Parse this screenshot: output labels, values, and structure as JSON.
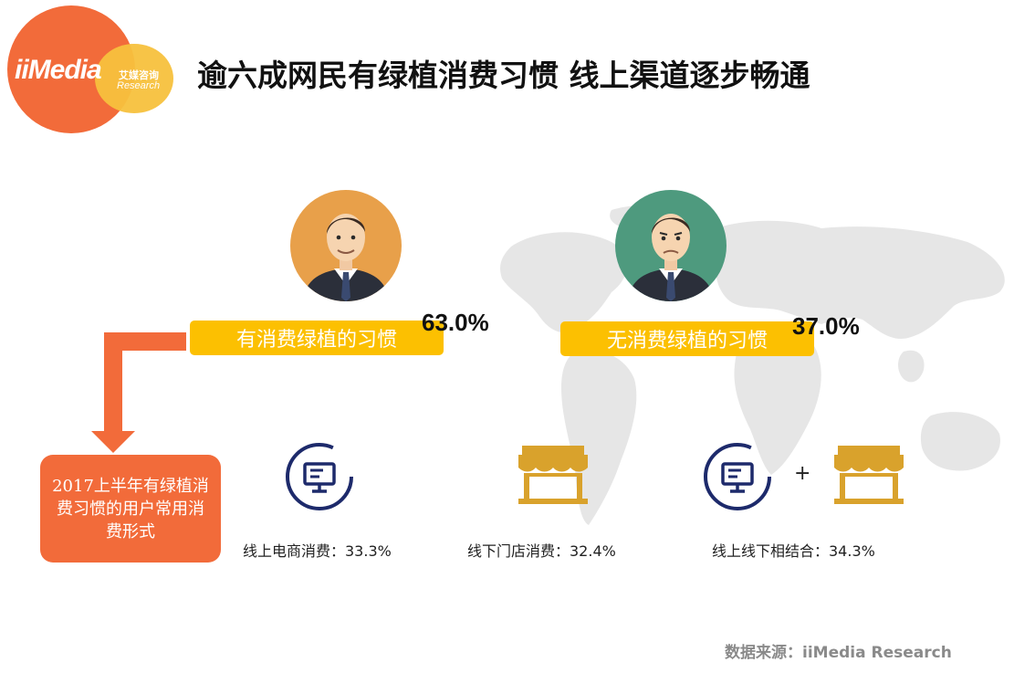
{
  "logo": {
    "brand": "iiMedia",
    "brand_cn": "艾媒咨询",
    "brand_en": "Research"
  },
  "title": "逾六成网民有绿植消费习惯 线上渠道逐步畅通",
  "habit": {
    "yes": {
      "label": "有消费绿植的习惯",
      "percent": "63.0%"
    },
    "no": {
      "label": "无消费绿植的习惯",
      "percent": "37.0%"
    }
  },
  "callout": "2017上半年有绿植消费习惯的用户常用消费形式",
  "channels": [
    {
      "label": "线上电商消费：33.3%",
      "icon": "monitor-icon"
    },
    {
      "label": "线下门店消费：32.4%",
      "icon": "store-icon"
    },
    {
      "label": "线上线下相结合：34.3%",
      "icon": "monitor-plus-store-icon"
    }
  ],
  "plus": "+",
  "source": "数据来源：iiMedia Research",
  "colors": {
    "orange": "#f26b3a",
    "yellow": "#fcc001",
    "navy": "#1d2a6b",
    "gold": "#d9a22c"
  }
}
